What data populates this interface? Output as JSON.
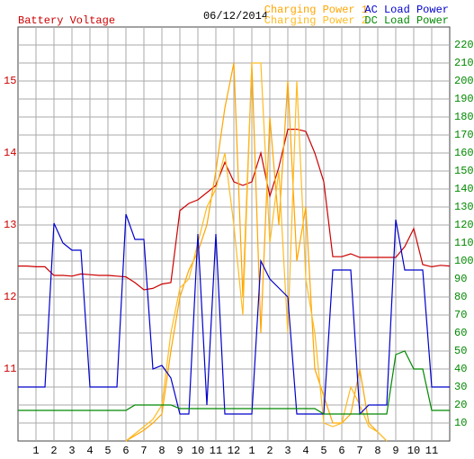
{
  "chart_data": {
    "type": "line",
    "title": "06/12/2014",
    "x": [
      0,
      0.5,
      1,
      1.5,
      2,
      2.5,
      3,
      3.5,
      4,
      4.5,
      5,
      5.5,
      6,
      6.5,
      7,
      7.5,
      8,
      8.5,
      9,
      9.5,
      10,
      10.5,
      11,
      11.5,
      12,
      12.5,
      13,
      13.5,
      14,
      14.5,
      15,
      15.5,
      16,
      16.5,
      17,
      17.5,
      18,
      18.5,
      19,
      19.5,
      20,
      20.5,
      21,
      21.5,
      22,
      22.5,
      23,
      23.5,
      24
    ],
    "xlim": [
      0,
      24
    ],
    "xticks": [
      1,
      2,
      3,
      4,
      5,
      6,
      7,
      8,
      9,
      10,
      11,
      12,
      {
        "value": 13,
        "label": "1"
      },
      {
        "value": 14,
        "label": "2"
      },
      {
        "value": 15,
        "label": "3"
      },
      {
        "value": 16,
        "label": "4"
      },
      {
        "value": 17,
        "label": "5"
      },
      {
        "value": 18,
        "label": "6"
      },
      {
        "value": 19,
        "label": "7"
      },
      {
        "value": 20,
        "label": "8"
      },
      {
        "value": 21,
        "label": "9"
      },
      {
        "value": 22,
        "label": "10"
      },
      {
        "value": 23,
        "label": "11"
      }
    ],
    "ylim": [
      10,
      15.75
    ],
    "yticks": [
      11,
      12,
      13,
      14,
      15
    ],
    "ytick_color": "#cc0000",
    "y2lim": [
      0,
      230
    ],
    "y2ticks": [
      10,
      20,
      30,
      40,
      50,
      60,
      70,
      80,
      90,
      100,
      110,
      120,
      130,
      140,
      150,
      160,
      170,
      180,
      190,
      200,
      210,
      220
    ],
    "y2tick_color": "#008800",
    "grid": true,
    "series": [
      {
        "name": "Battery Voltage",
        "color": "#cc0000",
        "values": [
          12.43,
          12.43,
          12.42,
          12.42,
          12.3,
          12.3,
          12.29,
          12.32,
          12.31,
          12.3,
          12.3,
          12.29,
          12.28,
          12.2,
          12.1,
          12.12,
          12.18,
          12.2,
          13.2,
          13.3,
          13.35,
          13.45,
          13.55,
          13.87,
          13.6,
          13.55,
          13.6,
          14.0,
          13.4,
          13.8,
          14.33,
          14.33,
          14.3,
          14.0,
          13.6,
          12.56,
          12.56,
          12.6,
          12.55,
          12.55,
          12.55,
          12.55,
          12.55,
          12.7,
          12.95,
          12.45,
          12.42,
          12.44,
          12.43
        ]
      },
      {
        "name": "Charging Power 1",
        "color": "#ffa500",
        "axis": "y2",
        "values": [
          null,
          null,
          null,
          null,
          null,
          null,
          null,
          null,
          null,
          null,
          null,
          null,
          0,
          3,
          6,
          10,
          15,
          50,
          80,
          95,
          105,
          120,
          150,
          185,
          210,
          80,
          210,
          60,
          180,
          120,
          200,
          100,
          130,
          40,
          25,
          10,
          10,
          15,
          40,
          10,
          5,
          0,
          null,
          null,
          null,
          null,
          null,
          null,
          null
        ]
      },
      {
        "name": "Charging Power 2",
        "color": "#ffbb22",
        "axis": "y2",
        "values": [
          null,
          null,
          null,
          null,
          null,
          null,
          null,
          null,
          null,
          null,
          null,
          null,
          0,
          4,
          8,
          12,
          20,
          60,
          85,
          90,
          110,
          130,
          140,
          160,
          120,
          70,
          210,
          210,
          110,
          150,
          60,
          200,
          90,
          60,
          10,
          8,
          10,
          30,
          20,
          8,
          5,
          0,
          null,
          null,
          null,
          null,
          null,
          null,
          null
        ]
      },
      {
        "name": "AC Load Power",
        "color": "#0000cc",
        "axis": "y2",
        "values": [
          30,
          30,
          30,
          30,
          121,
          110,
          106,
          106,
          30,
          30,
          30,
          30,
          126,
          112,
          112,
          40,
          42,
          35,
          15,
          15,
          115,
          20,
          115,
          15,
          15,
          15,
          15,
          100,
          90,
          85,
          80,
          15,
          15,
          15,
          15,
          95,
          95,
          95,
          15,
          20,
          20,
          20,
          123,
          95,
          95,
          95,
          30,
          30,
          30
        ]
      },
      {
        "name": "DC Load Power",
        "color": "#008800",
        "axis": "y2",
        "values": [
          17,
          17,
          17,
          17,
          17,
          17,
          17,
          17,
          17,
          17,
          17,
          17,
          17,
          20,
          20,
          20,
          20,
          20,
          18,
          18,
          18,
          18,
          18,
          18,
          18,
          18,
          18,
          18,
          18,
          18,
          18,
          18,
          18,
          18,
          15,
          15,
          15,
          15,
          15,
          15,
          15,
          15,
          48,
          50,
          40,
          40,
          17,
          17,
          17
        ]
      }
    ]
  }
}
